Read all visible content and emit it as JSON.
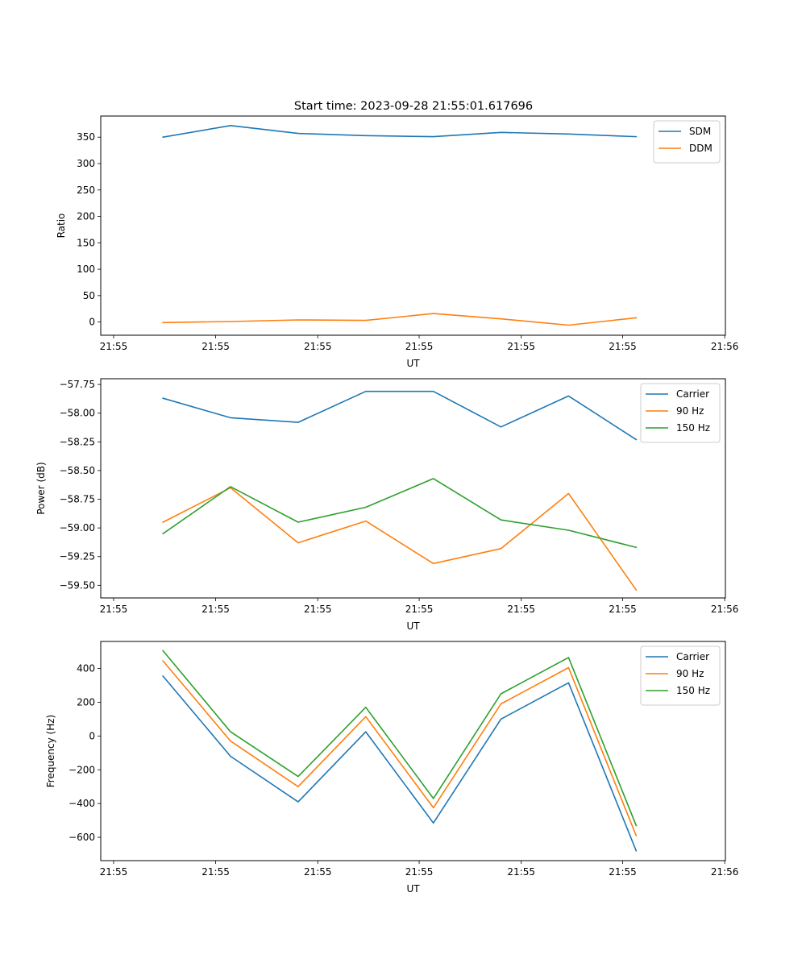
{
  "chart_data": [
    {
      "type": "line",
      "title": "Start time: 2023-09-28 21:55:01.617696",
      "xlabel": "UT",
      "ylabel": "Ratio",
      "x": [
        1,
        2,
        3,
        4,
        5,
        6,
        7,
        8
      ],
      "xlim": [
        0.08,
        9.32
      ],
      "x_ticks": [
        0.27,
        1.78,
        3.29,
        4.79,
        6.3,
        7.8,
        9.31
      ],
      "x_tick_labels": [
        "21:55",
        "21:55",
        "21:55",
        "21:55",
        "21:55",
        "21:55",
        "21:56"
      ],
      "ylim": [
        -25,
        390
      ],
      "y_ticks": [
        0,
        50,
        100,
        150,
        200,
        250,
        300,
        350
      ],
      "y_tick_labels": [
        "0",
        "50",
        "100",
        "150",
        "200",
        "250",
        "300",
        "350"
      ],
      "legend": "top-right",
      "series": [
        {
          "name": "SDM",
          "color": "#1f77b4",
          "values": [
            350,
            372,
            357,
            353,
            351,
            359,
            356,
            351
          ]
        },
        {
          "name": "DDM",
          "color": "#ff7f0e",
          "values": [
            -1,
            1,
            4,
            3,
            16,
            6,
            -6,
            8
          ]
        }
      ]
    },
    {
      "type": "line",
      "title": "",
      "xlabel": "UT",
      "ylabel": "Power (dB)",
      "x": [
        1,
        2,
        3,
        4,
        5,
        6,
        7,
        8
      ],
      "xlim": [
        0.08,
        9.32
      ],
      "x_ticks": [
        0.27,
        1.78,
        3.29,
        4.79,
        6.3,
        7.8,
        9.31
      ],
      "x_tick_labels": [
        "21:55",
        "21:55",
        "21:55",
        "21:55",
        "21:55",
        "21:55",
        "21:56"
      ],
      "ylim": [
        -59.61,
        -57.7
      ],
      "y_ticks": [
        -57.75,
        -58.0,
        -58.25,
        -58.5,
        -58.75,
        -59.0,
        -59.25,
        -59.5
      ],
      "y_tick_labels": [
        "−57.75",
        "−58.00",
        "−58.25",
        "−58.50",
        "−58.75",
        "−59.00",
        "−59.25",
        "−59.50"
      ],
      "legend": "top-right",
      "series": [
        {
          "name": "Carrier",
          "color": "#1f77b4",
          "values": [
            -57.87,
            -58.04,
            -58.08,
            -57.81,
            -57.81,
            -58.12,
            -57.85,
            -58.23
          ]
        },
        {
          "name": "90 Hz",
          "color": "#ff7f0e",
          "values": [
            -58.95,
            -58.65,
            -59.13,
            -58.94,
            -59.31,
            -59.18,
            -58.7,
            -59.54
          ]
        },
        {
          "name": "150 Hz",
          "color": "#2ca02c",
          "values": [
            -59.05,
            -58.64,
            -58.95,
            -58.82,
            -58.57,
            -58.93,
            -59.02,
            -59.17
          ]
        }
      ]
    },
    {
      "type": "line",
      "title": "",
      "xlabel": "UT",
      "ylabel": "Frequency (Hz)",
      "x": [
        1,
        2,
        3,
        4,
        5,
        6,
        7,
        8
      ],
      "xlim": [
        0.08,
        9.32
      ],
      "x_ticks": [
        0.27,
        1.78,
        3.29,
        4.79,
        6.3,
        7.8,
        9.31
      ],
      "x_tick_labels": [
        "21:55",
        "21:55",
        "21:55",
        "21:55",
        "21:55",
        "21:55",
        "21:56"
      ],
      "ylim": [
        -738,
        560
      ],
      "y_ticks": [
        400,
        200,
        0,
        -200,
        -400,
        -600
      ],
      "y_tick_labels": [
        "400",
        "200",
        "0",
        "−200",
        "−400",
        "−600"
      ],
      "legend": "top-right",
      "series": [
        {
          "name": "Carrier",
          "color": "#1f77b4",
          "values": [
            355,
            -120,
            -390,
            25,
            -515,
            100,
            315,
            -680
          ]
        },
        {
          "name": "90 Hz",
          "color": "#ff7f0e",
          "values": [
            445,
            -30,
            -300,
            115,
            -425,
            190,
            405,
            -590
          ]
        },
        {
          "name": "150 Hz",
          "color": "#2ca02c",
          "values": [
            505,
            25,
            -240,
            170,
            -370,
            250,
            465,
            -530
          ]
        }
      ]
    }
  ]
}
